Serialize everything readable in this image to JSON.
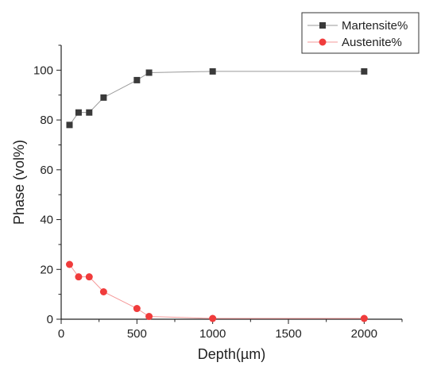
{
  "chart_data": {
    "type": "line",
    "xlabel": "Depth(µm)",
    "ylabel": "Phase (vol%)",
    "xlim": [
      0,
      2250
    ],
    "ylim": [
      0,
      110
    ],
    "xticks": [
      0,
      500,
      1000,
      1500,
      2000
    ],
    "yticks": [
      0,
      20,
      40,
      60,
      80,
      100
    ],
    "grid": false,
    "legend_position": "top-right",
    "series": [
      {
        "name": "Martensite%",
        "color": "#3a3a3a",
        "marker": "square",
        "x": [
          55,
          115,
          185,
          280,
          500,
          580,
          1000,
          2000
        ],
        "y": [
          78,
          83,
          83,
          89,
          96,
          99,
          99.5,
          99.5
        ]
      },
      {
        "name": "Austenite%",
        "color": "#f03c3c",
        "marker": "circle",
        "x": [
          55,
          115,
          185,
          280,
          500,
          580,
          1000,
          2000
        ],
        "y": [
          22,
          17,
          17,
          11,
          4.3,
          1.1,
          0.3,
          0.3
        ]
      }
    ]
  }
}
